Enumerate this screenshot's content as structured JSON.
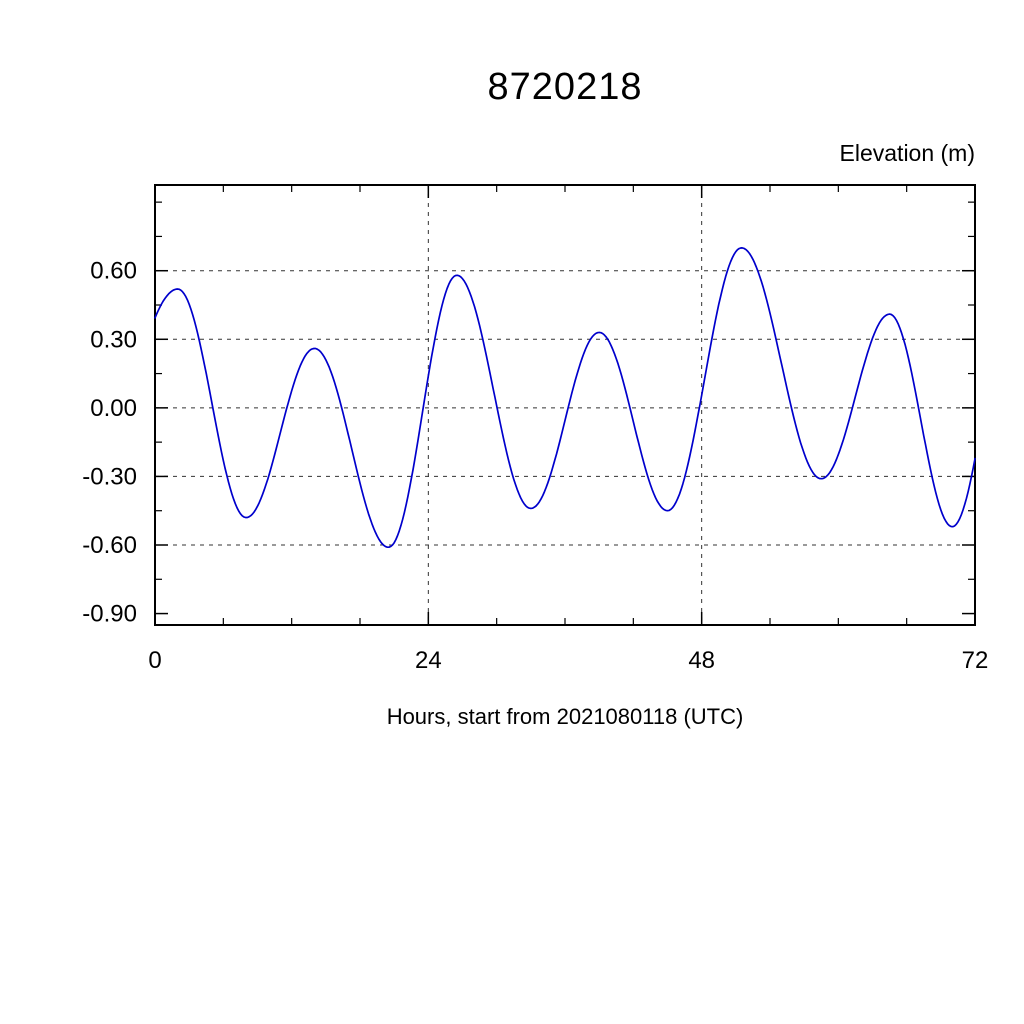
{
  "chart_data": {
    "type": "line",
    "title": "8720218",
    "right_axis_label": "Elevation (m)",
    "xlabel": "Hours, start from 2021080118 (UTC)",
    "xlim": [
      0,
      72
    ],
    "ylim": [
      -0.95,
      0.975
    ],
    "x_major_ticks": [
      0,
      24,
      48,
      72
    ],
    "x_tick_labels": [
      "0",
      "24",
      "48",
      "72"
    ],
    "x_minor_step": 6,
    "y_major_ticks": [
      0.6,
      0.3,
      0.0,
      -0.3,
      -0.6,
      -0.9
    ],
    "y_tick_labels": [
      "0.60",
      "0.30",
      "0.00",
      "-0.30",
      "-0.60",
      "-0.90"
    ],
    "y_minor_ticks": [
      0.9,
      0.75,
      0.45,
      0.15,
      -0.15,
      -0.45,
      -0.75
    ],
    "grid_x": [
      24,
      48
    ],
    "grid_y": [
      0.6,
      0.3,
      0.0,
      -0.3,
      -0.6
    ],
    "grid_on": true,
    "legend": "none",
    "line_color": "#0000CC",
    "frame_color": "#000000",
    "grid_color": "#333333",
    "series": [
      {
        "name": "elevation",
        "units": "m",
        "interpolation": "cosine-between-extrema",
        "clip_x": [
          0,
          72
        ],
        "points": [
          [
            -6.5,
            -0.45
          ],
          [
            2.0,
            0.52
          ],
          [
            8.0,
            -0.48
          ],
          [
            14.0,
            0.26
          ],
          [
            20.5,
            -0.61
          ],
          [
            26.5,
            0.58
          ],
          [
            33.0,
            -0.44
          ],
          [
            39.0,
            0.33
          ],
          [
            45.0,
            -0.45
          ],
          [
            51.5,
            0.7
          ],
          [
            58.5,
            -0.31
          ],
          [
            64.5,
            0.41
          ],
          [
            70.0,
            -0.52
          ],
          [
            75.5,
            0.5
          ]
        ],
        "extrema_note": "peaks/troughs read from plot: start 0.37 at t=0, peak 0.52@2h, trough -0.48@8h, peak 0.26@14h, trough -0.61@20.5h, peak 0.58@26.5h, trough -0.44@33h, peak 0.33@39h, trough -0.45@45h, peak 0.70@51.5h, trough -0.31@58.5h, peak 0.41@64.5h, trough -0.52@70h, end -0.24 at t=72"
      }
    ]
  }
}
